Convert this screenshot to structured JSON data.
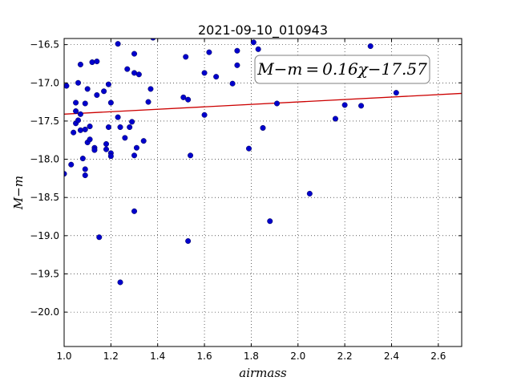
{
  "chart_data": {
    "type": "scatter",
    "title": "2021-09-10_010943",
    "xlabel": "airmass",
    "ylabel": "M−m",
    "xlim": [
      1.0,
      2.7
    ],
    "ylim": [
      -20.45,
      -16.42
    ],
    "y_inverted": true,
    "xticks": [
      1.0,
      1.2,
      1.4,
      1.6,
      1.8,
      2.0,
      2.2,
      2.4,
      2.6
    ],
    "xtick_labels": [
      "1.0",
      "1.2",
      "1.4",
      "1.6",
      "1.8",
      "2.0",
      "2.2",
      "2.4",
      "2.6"
    ],
    "yticks": [
      -16.5,
      -17.0,
      -17.5,
      -18.0,
      -18.5,
      -19.0,
      -19.5,
      -20.0
    ],
    "ytick_labels": [
      "−16.5",
      "−17.0",
      "−17.5",
      "−18.0",
      "−18.5",
      "−19.0",
      "−19.5",
      "−20.0"
    ],
    "grid": true,
    "annotation": "M−m = 0.16χ−17.57",
    "fit": {
      "slope": 0.16,
      "intercept": -17.57,
      "color": "#cc0000"
    },
    "point_color": "#0000cc",
    "points": [
      [
        1.0,
        -18.19
      ],
      [
        1.01,
        -17.04
      ],
      [
        1.03,
        -18.07
      ],
      [
        1.04,
        -17.65
      ],
      [
        1.05,
        -17.53
      ],
      [
        1.05,
        -17.26
      ],
      [
        1.05,
        -17.37
      ],
      [
        1.06,
        -17.49
      ],
      [
        1.06,
        -17.0
      ],
      [
        1.07,
        -17.41
      ],
      [
        1.07,
        -17.62
      ],
      [
        1.07,
        -16.76
      ],
      [
        1.08,
        -17.99
      ],
      [
        1.09,
        -18.21
      ],
      [
        1.09,
        -18.13
      ],
      [
        1.09,
        -17.61
      ],
      [
        1.09,
        -17.27
      ],
      [
        1.1,
        -17.08
      ],
      [
        1.1,
        -17.78
      ],
      [
        1.11,
        -17.74
      ],
      [
        1.11,
        -17.57
      ],
      [
        1.12,
        -16.73
      ],
      [
        1.13,
        -17.85
      ],
      [
        1.13,
        -17.88
      ],
      [
        1.14,
        -16.72
      ],
      [
        1.14,
        -17.16
      ],
      [
        1.15,
        -19.02
      ],
      [
        1.17,
        -17.11
      ],
      [
        1.18,
        -17.87
      ],
      [
        1.18,
        -17.8
      ],
      [
        1.19,
        -17.02
      ],
      [
        1.19,
        -17.58
      ],
      [
        1.2,
        -17.26
      ],
      [
        1.2,
        -17.92
      ],
      [
        1.2,
        -17.96
      ],
      [
        1.23,
        -16.49
      ],
      [
        1.23,
        -17.45
      ],
      [
        1.24,
        -17.58
      ],
      [
        1.24,
        -19.61
      ],
      [
        1.26,
        -17.72
      ],
      [
        1.27,
        -16.82
      ],
      [
        1.28,
        -17.58
      ],
      [
        1.29,
        -17.51
      ],
      [
        1.3,
        -17.95
      ],
      [
        1.3,
        -16.62
      ],
      [
        1.3,
        -18.68
      ],
      [
        1.3,
        -16.87
      ],
      [
        1.31,
        -17.85
      ],
      [
        1.32,
        -16.89
      ],
      [
        1.34,
        -17.76
      ],
      [
        1.36,
        -17.25
      ],
      [
        1.37,
        -17.08
      ],
      [
        1.38,
        -16.41
      ],
      [
        1.51,
        -17.19
      ],
      [
        1.52,
        -16.66
      ],
      [
        1.53,
        -19.07
      ],
      [
        1.53,
        -17.22
      ],
      [
        1.54,
        -17.95
      ],
      [
        1.6,
        -16.87
      ],
      [
        1.6,
        -17.42
      ],
      [
        1.62,
        -16.6
      ],
      [
        1.65,
        -16.92
      ],
      [
        1.72,
        -17.01
      ],
      [
        1.74,
        -16.58
      ],
      [
        1.74,
        -16.77
      ],
      [
        1.79,
        -17.86
      ],
      [
        1.81,
        -16.47
      ],
      [
        1.83,
        -16.56
      ],
      [
        1.85,
        -17.59
      ],
      [
        1.88,
        -18.81
      ],
      [
        1.91,
        -17.27
      ],
      [
        2.05,
        -18.45
      ],
      [
        2.16,
        -17.47
      ],
      [
        2.2,
        -17.29
      ],
      [
        2.27,
        -17.3
      ],
      [
        2.31,
        -16.52
      ],
      [
        2.42,
        -17.13
      ]
    ]
  }
}
